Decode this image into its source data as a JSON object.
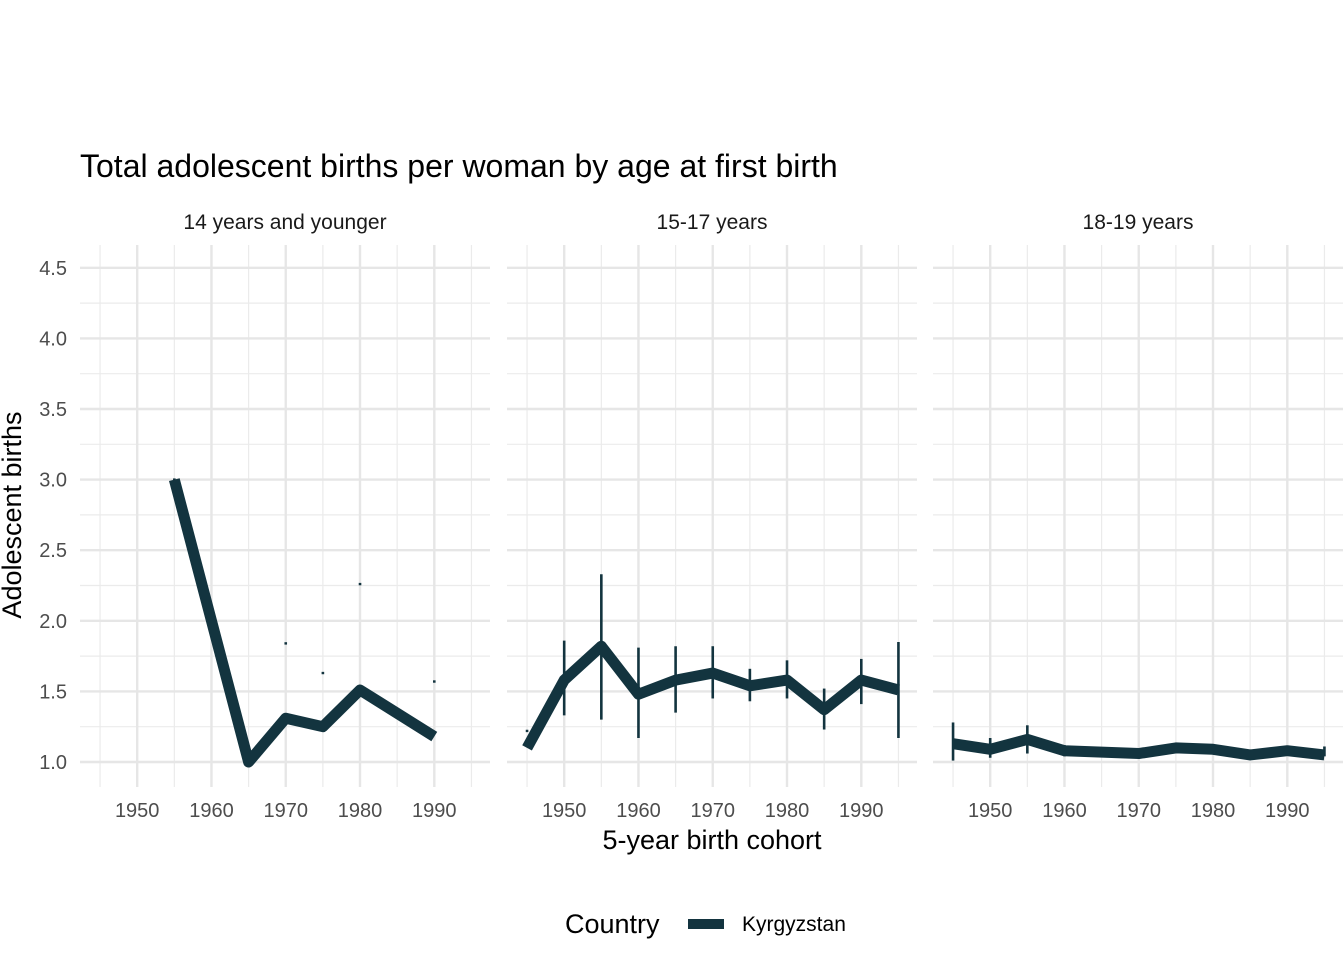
{
  "chart_data": {
    "type": "line",
    "title": "Total adolescent births per woman by age at first birth",
    "xlabel": "5-year birth cohort",
    "ylabel": "Adolescent births",
    "ylim": [
      0.86,
      4.65
    ],
    "xlim": [
      1942.3,
      1997.5
    ],
    "yticks": [
      "1.0",
      "1.5",
      "2.0",
      "2.5",
      "3.0",
      "3.5",
      "4.0",
      "4.5"
    ],
    "xticks": [
      "1950",
      "1960",
      "1970",
      "1980",
      "1990"
    ],
    "grid": true,
    "legend": {
      "title": "Country",
      "position": "bottom",
      "entries": [
        "Kyrgyzstan"
      ]
    },
    "color": "#13343f",
    "panels": [
      {
        "label": "14 years and younger",
        "x": [
          1955,
          1965,
          1970,
          1975,
          1980,
          1990
        ],
        "y": [
          3.0,
          1.0,
          1.31,
          1.25,
          1.51,
          1.18
        ],
        "error_bars": [
          {
            "x": 1955,
            "low": 3.0,
            "high": 3.0
          },
          {
            "x": 1970,
            "low": 1.84,
            "high": 1.84
          },
          {
            "x": 1975,
            "low": 1.63,
            "high": 1.63
          },
          {
            "x": 1980,
            "low": 2.26,
            "high": 2.26
          },
          {
            "x": 1990,
            "low": 1.57,
            "high": 1.57
          }
        ]
      },
      {
        "label": "15-17 years",
        "x": [
          1945,
          1950,
          1955,
          1960,
          1965,
          1970,
          1975,
          1980,
          1985,
          1990,
          1995
        ],
        "y": [
          1.1,
          1.58,
          1.82,
          1.48,
          1.58,
          1.63,
          1.54,
          1.58,
          1.37,
          1.58,
          1.51
        ],
        "error_bars": [
          {
            "x": 1945,
            "low": 1.22,
            "high": 1.22
          },
          {
            "x": 1950,
            "low": 1.33,
            "high": 1.86
          },
          {
            "x": 1955,
            "low": 1.3,
            "high": 2.33
          },
          {
            "x": 1960,
            "low": 1.17,
            "high": 1.81
          },
          {
            "x": 1965,
            "low": 1.35,
            "high": 1.82
          },
          {
            "x": 1970,
            "low": 1.45,
            "high": 1.82
          },
          {
            "x": 1975,
            "low": 1.43,
            "high": 1.66
          },
          {
            "x": 1980,
            "low": 1.45,
            "high": 1.72
          },
          {
            "x": 1985,
            "low": 1.23,
            "high": 1.52
          },
          {
            "x": 1990,
            "low": 1.41,
            "high": 1.73
          },
          {
            "x": 1995,
            "low": 1.17,
            "high": 1.85
          }
        ]
      },
      {
        "label": "18-19 years",
        "x": [
          1945,
          1950,
          1955,
          1960,
          1965,
          1970,
          1975,
          1980,
          1985,
          1990,
          1995
        ],
        "y": [
          1.13,
          1.09,
          1.16,
          1.08,
          1.07,
          1.06,
          1.1,
          1.09,
          1.05,
          1.08,
          1.05
        ],
        "error_bars": [
          {
            "x": 1945,
            "low": 1.01,
            "high": 1.28
          },
          {
            "x": 1950,
            "low": 1.03,
            "high": 1.17
          },
          {
            "x": 1955,
            "low": 1.06,
            "high": 1.26
          },
          {
            "x": 1960,
            "low": 1.04,
            "high": 1.12
          },
          {
            "x": 1995,
            "low": 1.04,
            "high": 1.11
          }
        ]
      }
    ]
  }
}
